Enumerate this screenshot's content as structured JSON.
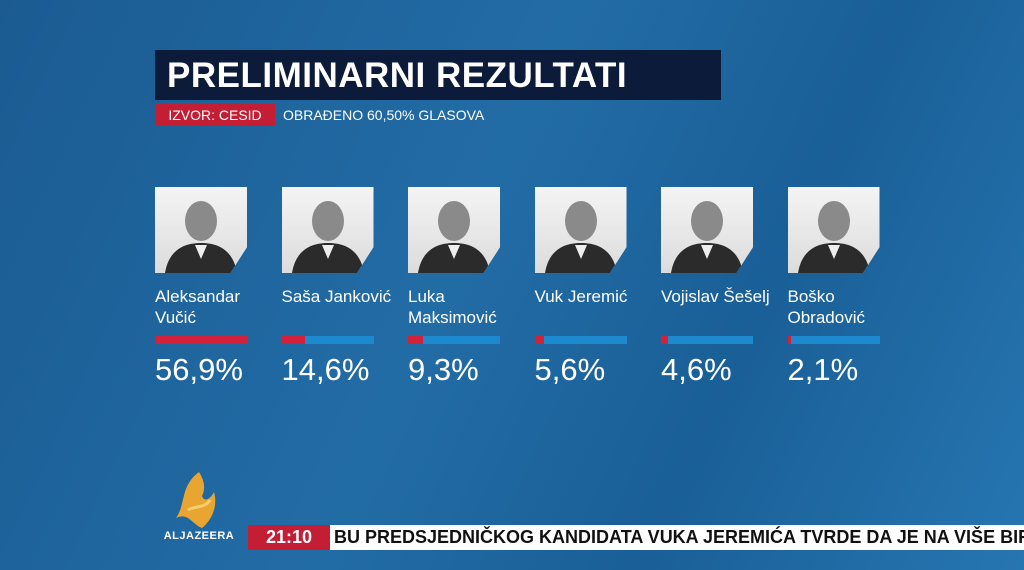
{
  "header": {
    "title": "PRELIMINARNI REZULTATI",
    "source": "IZVOR: CESID",
    "processed": "OBRAĐENO 60,50% GLASOVA"
  },
  "chart_data": {
    "type": "bar",
    "categories": [
      "Aleksandar Vučić",
      "Saša Janković",
      "Luka Maksimović",
      "Vuk Jeremić",
      "Vojislav Šešelj",
      "Boško Obradović"
    ],
    "values": [
      56.9,
      14.6,
      9.3,
      5.6,
      4.6,
      2.1
    ],
    "value_labels": [
      "56,9%",
      "14,6%",
      "9,3%",
      "5,6%",
      "4,6%",
      "2,1%"
    ],
    "xlim": [
      0,
      57
    ],
    "color": "#d2213a",
    "track_color": "#1d8ad0"
  },
  "logo": "ALJAZEERA",
  "ticker": {
    "time": "21:10",
    "text": "BU PREDSJEDNIČKOG KANDIDATA VUKA JEREMIĆA TVRDE DA JE NA VIŠE BIR"
  }
}
